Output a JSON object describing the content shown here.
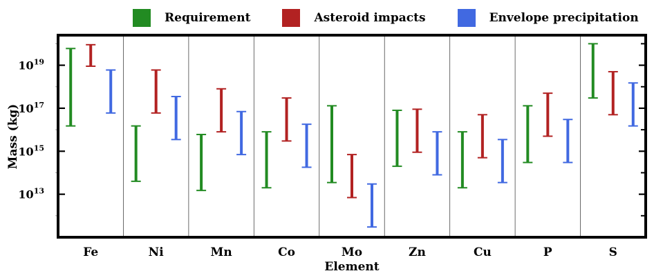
{
  "chart_data": {
    "type": "errorbar",
    "title": "",
    "xlabel": "Element",
    "ylabel": "Mass (kg)",
    "yscale": "log",
    "ylim": [
      100000000000.0,
      2.5e+20
    ],
    "yticks": [
      {
        "value": 10000000000000.0,
        "base": "10",
        "exp": "13"
      },
      {
        "value": 1000000000000000.0,
        "base": "10",
        "exp": "15"
      },
      {
        "value": 1e+17,
        "base": "10",
        "exp": "17"
      },
      {
        "value": 1e+19,
        "base": "10",
        "exp": "19"
      }
    ],
    "categories": [
      "Fe",
      "Ni",
      "Mn",
      "Co",
      "Mo",
      "Zn",
      "Cu",
      "P",
      "S"
    ],
    "legend_position": "top",
    "series": [
      {
        "name": "Requirement",
        "color": "#228B22",
        "ranges": [
          [
            1.5e+16,
            6e+19
          ],
          [
            40000000000000.0,
            1.5e+16
          ],
          [
            15000000000000.0,
            6000000000000000.0
          ],
          [
            20000000000000.0,
            8000000000000000.0
          ],
          [
            35000000000000.0,
            1.3e+17
          ],
          [
            200000000000000.0,
            8e+16
          ],
          [
            20000000000000.0,
            8000000000000000.0
          ],
          [
            300000000000000.0,
            1.3e+17
          ],
          [
            3e+17,
            1e+20
          ]
        ]
      },
      {
        "name": "Asteroid impacts",
        "color": "#B22222",
        "ranges": [
          [
            9e+18,
            9e+19
          ],
          [
            6e+16,
            6e+18
          ],
          [
            8000000000000000.0,
            8e+17
          ],
          [
            3000000000000000.0,
            3e+17
          ],
          [
            7000000000000.0,
            700000000000000.0
          ],
          [
            900000000000000.0,
            9e+16
          ],
          [
            500000000000000.0,
            5e+16
          ],
          [
            5000000000000000.0,
            5e+17
          ],
          [
            5e+16,
            5e+18
          ]
        ]
      },
      {
        "name": "Envelope precipitation",
        "color": "#4169E1",
        "ranges": [
          [
            6e+16,
            6e+18
          ],
          [
            3500000000000000.0,
            3.5e+17
          ],
          [
            700000000000000.0,
            7e+16
          ],
          [
            180000000000000.0,
            1.8e+16
          ],
          [
            300000000000.0,
            30000000000000.0
          ],
          [
            80000000000000.0,
            8000000000000000.0
          ],
          [
            35000000000000.0,
            3500000000000000.0
          ],
          [
            300000000000000.0,
            3e+16
          ],
          [
            1.5e+16,
            1.5e+18
          ]
        ]
      }
    ]
  }
}
